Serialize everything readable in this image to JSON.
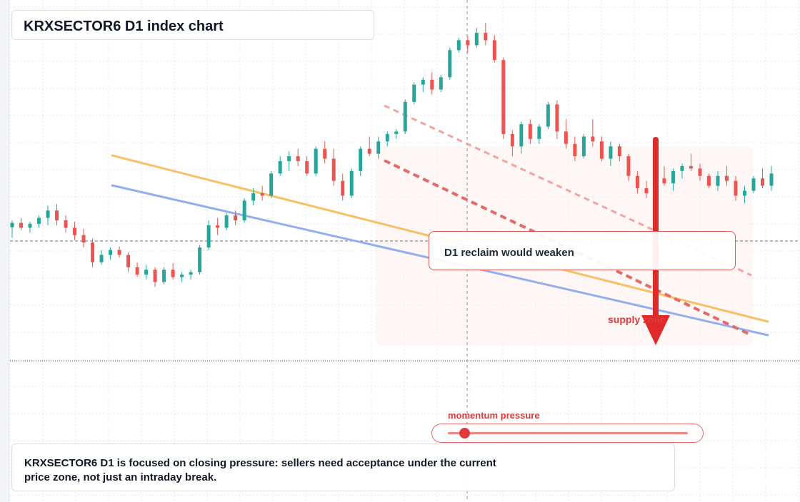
{
  "title": "KRXSECTOR6 D1 index chart",
  "callout": {
    "text": "D1 reclaim would weaken"
  },
  "supply_zone_label": "supply zone",
  "momentum": {
    "label": "momentum pressure",
    "level": 0.07
  },
  "note": "KRXSECTOR6 D1 is focused on closing pressure: sellers need acceptance under the current price zone, not just an intraday break.",
  "colors": {
    "up": "#26a69a",
    "down": "#ef5350",
    "accent": "#e0383b",
    "ma_fast": "#f7c067",
    "ma_slow": "#93aef0",
    "grid": "#e3e6ec"
  },
  "chart_data": {
    "type": "candlestick",
    "title": "KRXSECTOR6 D1 index chart",
    "ylim": [
      0,
      100
    ],
    "grid": true,
    "legend": "none",
    "candles": [
      {
        "o": 55.1,
        "h": 56.5,
        "l": 53.0,
        "c": 56.0
      },
      {
        "o": 56.0,
        "h": 57.0,
        "l": 54.5,
        "c": 55.0
      },
      {
        "o": 55.0,
        "h": 56.2,
        "l": 54.0,
        "c": 55.8
      },
      {
        "o": 55.8,
        "h": 57.5,
        "l": 55.0,
        "c": 57.0
      },
      {
        "o": 57.0,
        "h": 59.5,
        "l": 55.5,
        "c": 58.5
      },
      {
        "o": 58.5,
        "h": 59.8,
        "l": 55.5,
        "c": 56.5
      },
      {
        "o": 56.5,
        "h": 57.5,
        "l": 54.0,
        "c": 55.0
      },
      {
        "o": 55.0,
        "h": 56.2,
        "l": 52.5,
        "c": 53.5
      },
      {
        "o": 53.5,
        "h": 54.8,
        "l": 51.0,
        "c": 52.0
      },
      {
        "o": 52.0,
        "h": 52.8,
        "l": 47.0,
        "c": 48.0
      },
      {
        "o": 48.0,
        "h": 50.5,
        "l": 47.5,
        "c": 49.5
      },
      {
        "o": 49.5,
        "h": 51.0,
        "l": 48.5,
        "c": 50.5
      },
      {
        "o": 50.5,
        "h": 51.2,
        "l": 49.0,
        "c": 49.5
      },
      {
        "o": 49.5,
        "h": 50.0,
        "l": 46.0,
        "c": 47.0
      },
      {
        "o": 47.0,
        "h": 48.0,
        "l": 45.0,
        "c": 45.5
      },
      {
        "o": 45.5,
        "h": 47.5,
        "l": 44.5,
        "c": 46.5
      },
      {
        "o": 46.5,
        "h": 47.0,
        "l": 43.0,
        "c": 44.0
      },
      {
        "o": 44.0,
        "h": 47.0,
        "l": 43.5,
        "c": 46.5
      },
      {
        "o": 46.5,
        "h": 47.8,
        "l": 44.5,
        "c": 45.0
      },
      {
        "o": 45.0,
        "h": 46.0,
        "l": 44.0,
        "c": 45.5
      },
      {
        "o": 45.5,
        "h": 46.5,
        "l": 44.5,
        "c": 46.0
      },
      {
        "o": 46.0,
        "h": 51.5,
        "l": 45.5,
        "c": 51.0
      },
      {
        "o": 51.0,
        "h": 56.5,
        "l": 50.5,
        "c": 55.5
      },
      {
        "o": 55.5,
        "h": 57.0,
        "l": 53.5,
        "c": 55.0
      },
      {
        "o": 55.0,
        "h": 58.0,
        "l": 54.5,
        "c": 57.5
      },
      {
        "o": 57.5,
        "h": 58.5,
        "l": 55.5,
        "c": 56.5
      },
      {
        "o": 56.5,
        "h": 61.0,
        "l": 56.0,
        "c": 60.5
      },
      {
        "o": 60.5,
        "h": 63.0,
        "l": 59.5,
        "c": 62.0
      },
      {
        "o": 62.0,
        "h": 63.5,
        "l": 60.5,
        "c": 61.5
      },
      {
        "o": 61.5,
        "h": 66.5,
        "l": 61.0,
        "c": 66.0
      },
      {
        "o": 66.0,
        "h": 69.5,
        "l": 65.5,
        "c": 68.5
      },
      {
        "o": 68.5,
        "h": 70.5,
        "l": 66.5,
        "c": 69.5
      },
      {
        "o": 69.5,
        "h": 71.0,
        "l": 67.5,
        "c": 68.5
      },
      {
        "o": 68.5,
        "h": 69.5,
        "l": 65.5,
        "c": 66.0
      },
      {
        "o": 66.0,
        "h": 71.5,
        "l": 65.5,
        "c": 71.0
      },
      {
        "o": 71.0,
        "h": 72.5,
        "l": 68.0,
        "c": 69.0
      },
      {
        "o": 69.0,
        "h": 71.0,
        "l": 63.5,
        "c": 64.5
      },
      {
        "o": 64.5,
        "h": 66.0,
        "l": 60.5,
        "c": 61.5
      },
      {
        "o": 61.5,
        "h": 67.0,
        "l": 61.0,
        "c": 66.5
      },
      {
        "o": 66.5,
        "h": 71.5,
        "l": 65.5,
        "c": 71.0
      },
      {
        "o": 71.0,
        "h": 73.5,
        "l": 69.5,
        "c": 70.0
      },
      {
        "o": 70.0,
        "h": 73.5,
        "l": 69.0,
        "c": 72.5
      },
      {
        "o": 72.5,
        "h": 74.5,
        "l": 71.5,
        "c": 74.0
      },
      {
        "o": 74.0,
        "h": 75.0,
        "l": 73.0,
        "c": 74.5
      },
      {
        "o": 74.5,
        "h": 81.0,
        "l": 74.0,
        "c": 80.5
      },
      {
        "o": 80.5,
        "h": 84.5,
        "l": 80.0,
        "c": 84.0
      },
      {
        "o": 84.0,
        "h": 85.5,
        "l": 82.5,
        "c": 85.0
      },
      {
        "o": 85.0,
        "h": 86.5,
        "l": 82.0,
        "c": 83.0
      },
      {
        "o": 83.0,
        "h": 86.0,
        "l": 82.5,
        "c": 85.5
      },
      {
        "o": 85.5,
        "h": 91.5,
        "l": 85.0,
        "c": 91.0
      },
      {
        "o": 91.0,
        "h": 93.5,
        "l": 90.5,
        "c": 93.0
      },
      {
        "o": 93.0,
        "h": 93.8,
        "l": 90.5,
        "c": 92.0
      },
      {
        "o": 92.0,
        "h": 95.5,
        "l": 91.5,
        "c": 94.5
      },
      {
        "o": 94.5,
        "h": 96.5,
        "l": 92.0,
        "c": 93.0
      },
      {
        "o": 93.0,
        "h": 94.0,
        "l": 88.5,
        "c": 89.0
      },
      {
        "o": 89.0,
        "h": 89.5,
        "l": 73.0,
        "c": 74.0
      },
      {
        "o": 74.0,
        "h": 74.8,
        "l": 69.5,
        "c": 71.5
      },
      {
        "o": 71.5,
        "h": 76.5,
        "l": 70.0,
        "c": 76.0
      },
      {
        "o": 76.0,
        "h": 77.0,
        "l": 72.0,
        "c": 73.0
      },
      {
        "o": 73.0,
        "h": 76.0,
        "l": 72.0,
        "c": 75.5
      },
      {
        "o": 75.5,
        "h": 80.5,
        "l": 75.0,
        "c": 80.0
      },
      {
        "o": 80.0,
        "h": 80.8,
        "l": 73.0,
        "c": 74.5
      },
      {
        "o": 74.5,
        "h": 77.0,
        "l": 71.0,
        "c": 72.0
      },
      {
        "o": 72.0,
        "h": 73.5,
        "l": 68.5,
        "c": 69.5
      },
      {
        "o": 69.5,
        "h": 74.0,
        "l": 69.0,
        "c": 73.5
      },
      {
        "o": 73.5,
        "h": 77.0,
        "l": 71.5,
        "c": 72.5
      },
      {
        "o": 72.5,
        "h": 73.5,
        "l": 68.5,
        "c": 69.0
      },
      {
        "o": 69.0,
        "h": 72.5,
        "l": 67.5,
        "c": 71.5
      },
      {
        "o": 71.5,
        "h": 72.0,
        "l": 68.5,
        "c": 69.5
      },
      {
        "o": 69.5,
        "h": 70.0,
        "l": 64.5,
        "c": 65.5
      },
      {
        "o": 65.5,
        "h": 66.5,
        "l": 62.0,
        "c": 63.0
      },
      {
        "o": 63.0,
        "h": 64.5,
        "l": 61.0,
        "c": 62.0
      },
      {
        "o": 62.0,
        "h": 65.5,
        "l": 61.5,
        "c": 65.0
      },
      {
        "o": 65.0,
        "h": 67.5,
        "l": 63.5,
        "c": 64.0
      },
      {
        "o": 64.0,
        "h": 67.0,
        "l": 62.5,
        "c": 66.5
      },
      {
        "o": 66.5,
        "h": 68.0,
        "l": 65.0,
        "c": 67.5
      },
      {
        "o": 67.5,
        "h": 70.0,
        "l": 66.5,
        "c": 67.0
      },
      {
        "o": 67.0,
        "h": 68.0,
        "l": 64.5,
        "c": 65.5
      },
      {
        "o": 65.5,
        "h": 66.0,
        "l": 63.0,
        "c": 63.5
      },
      {
        "o": 63.5,
        "h": 66.5,
        "l": 62.5,
        "c": 65.5
      },
      {
        "o": 65.5,
        "h": 67.5,
        "l": 63.5,
        "c": 64.5
      },
      {
        "o": 64.5,
        "h": 65.5,
        "l": 60.5,
        "c": 61.5
      },
      {
        "o": 61.5,
        "h": 63.5,
        "l": 60.0,
        "c": 62.5
      },
      {
        "o": 62.5,
        "h": 65.5,
        "l": 62.0,
        "c": 65.0
      },
      {
        "o": 65.0,
        "h": 67.0,
        "l": 63.0,
        "c": 63.5
      },
      {
        "o": 63.5,
        "h": 67.5,
        "l": 62.5,
        "c": 66.0
      }
    ],
    "fast_average": {
      "name": "",
      "start": 71.0,
      "end": 45.0
    },
    "slow_average": {
      "name": "",
      "start": 65.0,
      "end": 41.0
    }
  }
}
